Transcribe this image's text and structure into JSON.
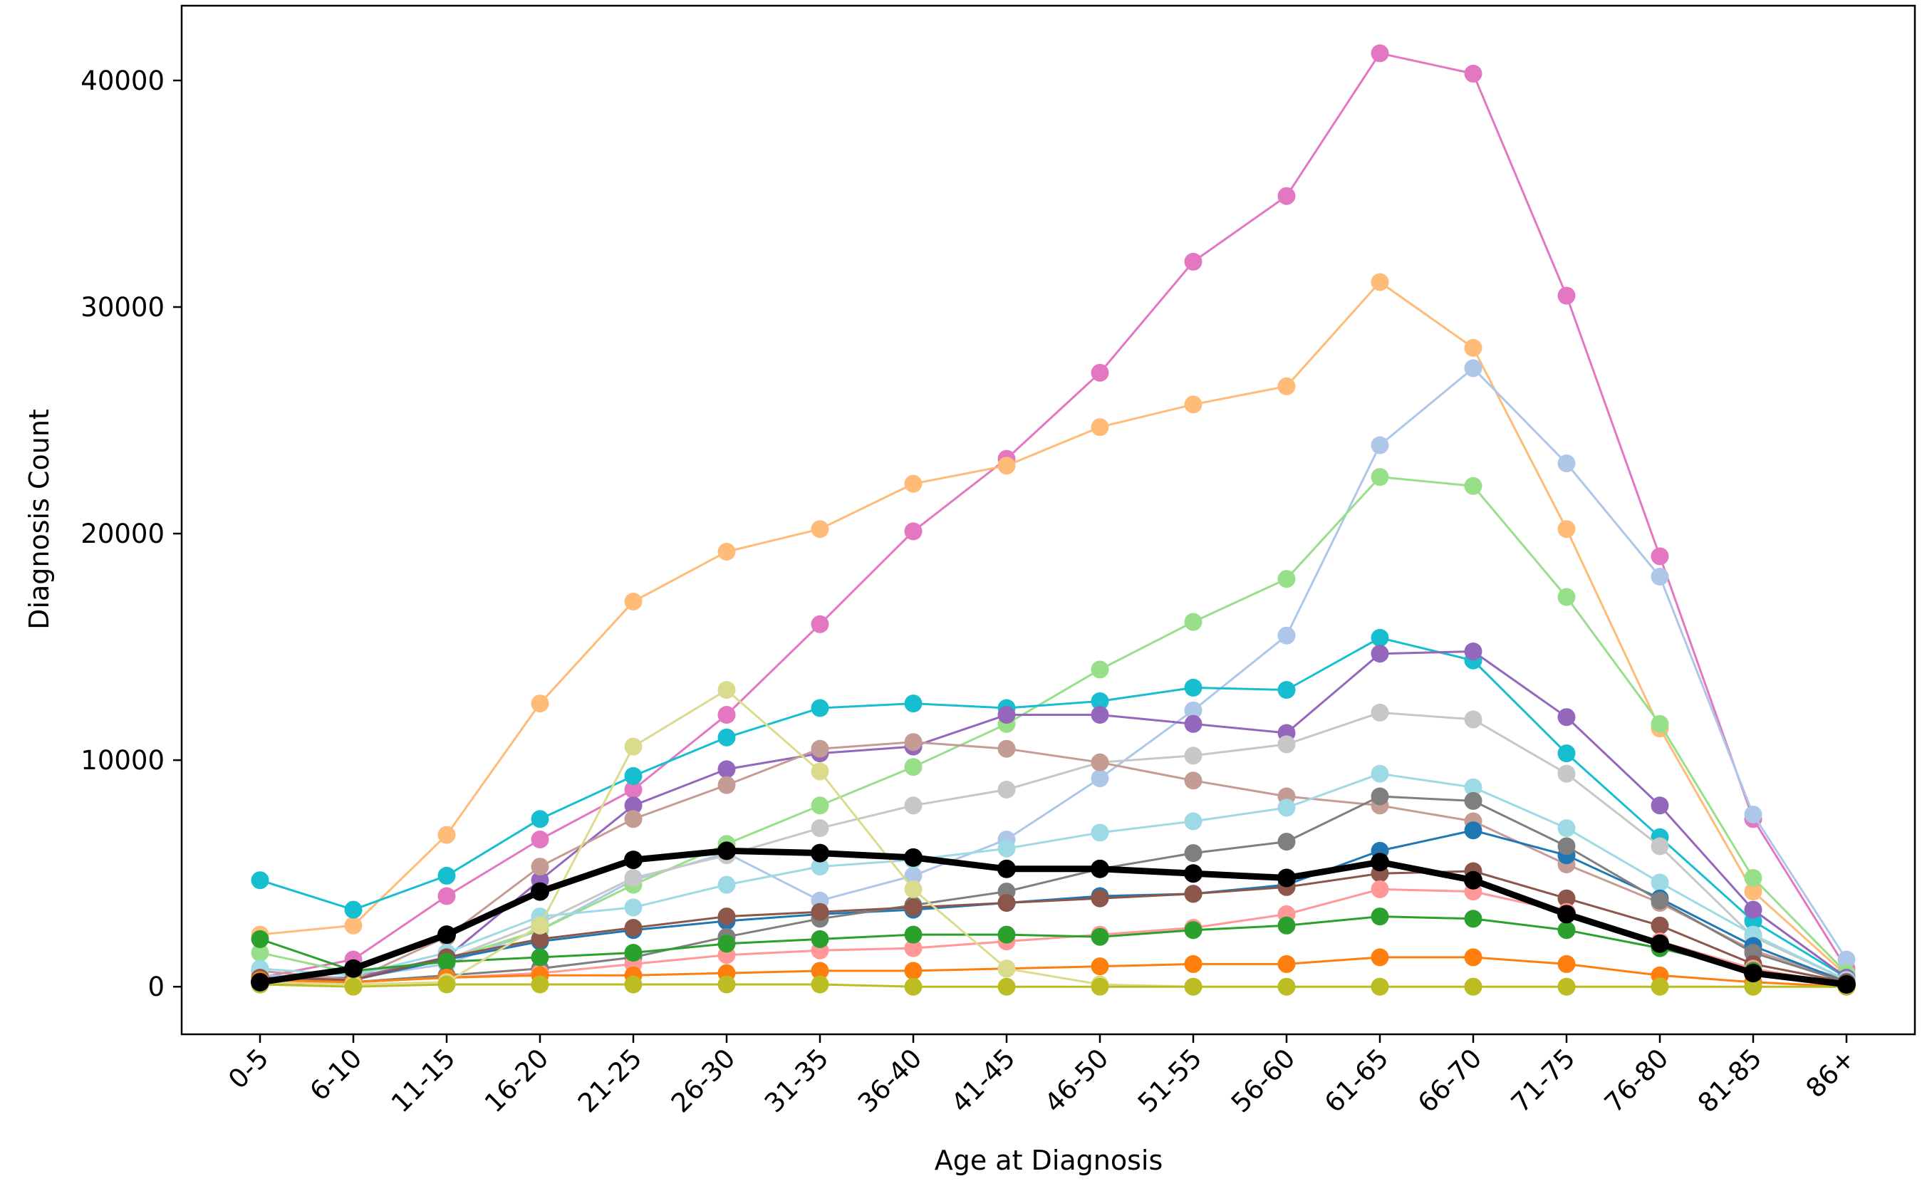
{
  "chart_data": {
    "type": "line",
    "title": "",
    "xlabel": "Age at Diagnosis",
    "ylabel": "Diagnosis Count",
    "categories": [
      "0-5",
      "6-10",
      "11-15",
      "16-20",
      "21-25",
      "26-30",
      "31-35",
      "36-40",
      "41-45",
      "46-50",
      "51-55",
      "56-60",
      "61-65",
      "66-70",
      "71-75",
      "76-80",
      "81-85",
      "86+"
    ],
    "ylim": [
      -2100,
      43300
    ],
    "yticks": [
      0,
      10000,
      20000,
      30000,
      40000
    ],
    "yticklabels": [
      "0",
      "10000",
      "20000",
      "30000",
      "40000"
    ],
    "grid": false,
    "legend": "none",
    "series": [
      {
        "color": "#e377c2",
        "values": [
          400,
          1200,
          4000,
          6500,
          8700,
          12000,
          16000,
          20100,
          23300,
          27100,
          32000,
          34900,
          41200,
          40300,
          30500,
          19000,
          7400,
          800
        ]
      },
      {
        "color": "#ffbb78",
        "values": [
          2300,
          2700,
          6700,
          12500,
          17000,
          19200,
          20200,
          22200,
          23000,
          24700,
          25700,
          26500,
          31100,
          28200,
          20200,
          11400,
          4200,
          500
        ]
      },
      {
        "color": "#aec7e8",
        "values": [
          500,
          400,
          1000,
          2500,
          4700,
          5900,
          3800,
          4900,
          6500,
          9200,
          12200,
          15500,
          23900,
          27300,
          23100,
          18100,
          7600,
          1200
        ]
      },
      {
        "color": "#98df8a",
        "values": [
          1500,
          600,
          1200,
          2500,
          4500,
          6300,
          8000,
          9700,
          11600,
          14000,
          16100,
          18000,
          22500,
          22100,
          17200,
          11600,
          4800,
          600
        ]
      },
      {
        "color": "#17becf",
        "values": [
          4700,
          3400,
          4900,
          7400,
          9300,
          11000,
          12300,
          12500,
          12300,
          12600,
          13200,
          13100,
          15400,
          14400,
          10300,
          6600,
          2900,
          400
        ]
      },
      {
        "color": "#9467bd",
        "values": [
          300,
          400,
          1300,
          4700,
          8000,
          9600,
          10300,
          10600,
          12000,
          12000,
          11600,
          11200,
          14700,
          14800,
          11900,
          8000,
          3400,
          400
        ]
      },
      {
        "color": "#c7c7c7",
        "values": [
          300,
          300,
          1200,
          2800,
          4800,
          5800,
          7000,
          8000,
          8700,
          9900,
          10200,
          10700,
          12100,
          11800,
          9400,
          6200,
          2200,
          300
        ]
      },
      {
        "color": "#c49c94",
        "values": [
          700,
          300,
          2200,
          5300,
          7400,
          8900,
          10500,
          10800,
          10500,
          9900,
          9100,
          8400,
          8000,
          7300,
          5400,
          3700,
          1600,
          300
        ]
      },
      {
        "color": "#9edae5",
        "values": [
          800,
          500,
          1500,
          3100,
          3500,
          4500,
          5300,
          5600,
          6100,
          6800,
          7300,
          7900,
          9400,
          8800,
          7000,
          4600,
          2300,
          300
        ]
      },
      {
        "color": "#1f77b4",
        "values": [
          200,
          300,
          1200,
          2000,
          2500,
          2900,
          3200,
          3400,
          3700,
          4000,
          4100,
          4500,
          6000,
          6900,
          5800,
          3900,
          1800,
          200
        ]
      },
      {
        "color": "#7f7f7f",
        "values": [
          100,
          200,
          500,
          800,
          1300,
          2200,
          3000,
          3600,
          4200,
          5200,
          5900,
          6400,
          8400,
          8200,
          6200,
          3800,
          1500,
          200
        ]
      },
      {
        "color": "#8c564b",
        "values": [
          400,
          300,
          1300,
          2100,
          2600,
          3100,
          3300,
          3500,
          3700,
          3900,
          4100,
          4400,
          5000,
          5100,
          3900,
          2700,
          1000,
          200
        ]
      },
      {
        "color": "#ff9896",
        "values": [
          200,
          200,
          400,
          600,
          1000,
          1400,
          1600,
          1700,
          2000,
          2300,
          2600,
          3200,
          4300,
          4200,
          3300,
          2000,
          800,
          100
        ]
      },
      {
        "color": "#2ca02c",
        "values": [
          2100,
          700,
          1100,
          1300,
          1500,
          1900,
          2100,
          2300,
          2300,
          2200,
          2500,
          2700,
          3100,
          3000,
          2500,
          1700,
          700,
          100
        ]
      },
      {
        "color": "#ff7f0e",
        "values": [
          300,
          200,
          400,
          500,
          500,
          600,
          700,
          700,
          800,
          900,
          1000,
          1000,
          1300,
          1300,
          1000,
          500,
          200,
          0
        ]
      },
      {
        "color": "#dbdb8d",
        "values": [
          200,
          100,
          200,
          2700,
          10600,
          13100,
          9500,
          4300,
          800,
          100,
          0,
          0,
          0,
          0,
          0,
          0,
          0,
          0
        ]
      },
      {
        "color": "#bcbd22",
        "values": [
          100,
          0,
          100,
          100,
          100,
          100,
          100,
          0,
          0,
          0,
          0,
          0,
          0,
          0,
          0,
          0,
          0,
          0
        ]
      },
      {
        "color": "#000000",
        "values": [
          200,
          800,
          2300,
          4200,
          5600,
          6000,
          5900,
          5700,
          5200,
          5200,
          5000,
          4800,
          5500,
          4700,
          3200,
          1900,
          600,
          100
        ],
        "bold": true
      }
    ]
  }
}
